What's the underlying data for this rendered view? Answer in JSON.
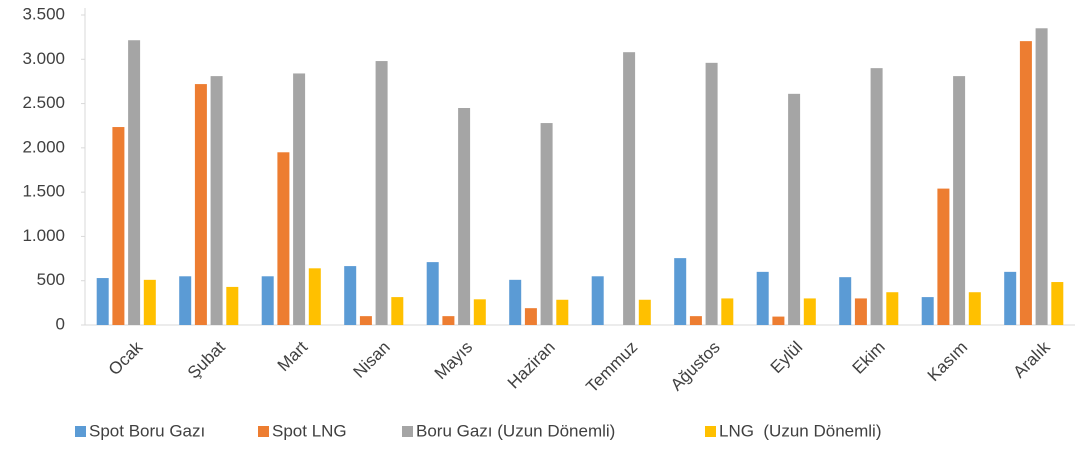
{
  "chart_data": {
    "type": "bar",
    "categories": [
      "Ocak",
      "Şubat",
      "Mart",
      "Nisan",
      "Mayıs",
      "Haziran",
      "Temmuz",
      "Ağustos",
      "Eylül",
      "Ekim",
      "Kasım",
      "Aralık"
    ],
    "series": [
      {
        "name": "Spot Boru Gazı",
        "color": "#5b9bd5",
        "values": [
          530,
          550,
          550,
          665,
          710,
          510,
          550,
          755,
          600,
          540,
          315,
          600
        ]
      },
      {
        "name": "Spot LNG",
        "color": "#ed7d31",
        "values": [
          2235,
          2720,
          1950,
          100,
          100,
          190,
          0,
          100,
          95,
          300,
          1540,
          3205
        ]
      },
      {
        "name": "Boru Gazı (Uzun Dönemli)",
        "color": "#a5a5a5",
        "values": [
          3215,
          2810,
          2840,
          2980,
          2450,
          2280,
          3080,
          2960,
          2610,
          2900,
          2810,
          3350
        ]
      },
      {
        "name": "LNG  (Uzun Dönemli)",
        "color": "#ffc000",
        "values": [
          510,
          430,
          640,
          315,
          290,
          285,
          285,
          300,
          300,
          370,
          370,
          485
        ]
      }
    ],
    "ylim": [
      0,
      3500
    ],
    "yticks": [
      0,
      500,
      {
        "value": 1000,
        "label": "1.000"
      },
      {
        "value": 1500,
        "label": "1.500"
      },
      {
        "value": 2000,
        "label": "2.000"
      },
      {
        "value": 2500,
        "label": "2.500"
      },
      {
        "value": 3000,
        "label": "3.000"
      },
      {
        "value": 3500,
        "label": "3.500"
      }
    ],
    "grid": false,
    "legend": "bottom"
  }
}
